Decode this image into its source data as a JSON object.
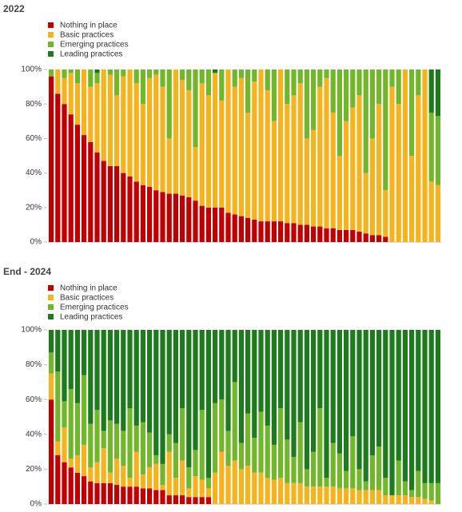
{
  "chart_data": [
    {
      "type": "stacked-bar",
      "title": "2022",
      "ylim": [
        0,
        100
      ],
      "yticks": [
        {
          "value": 0,
          "label": "0%"
        },
        {
          "value": 20,
          "label": "20%"
        },
        {
          "value": 40,
          "label": "40%"
        },
        {
          "value": 60,
          "label": "60%"
        },
        {
          "value": 80,
          "label": "80%"
        },
        {
          "value": 100,
          "label": "100%"
        }
      ],
      "series": [
        {
          "name": "Nothing in place",
          "color": "#c00000",
          "values": [
            96,
            86,
            80,
            74,
            68,
            62,
            58,
            52,
            47,
            44,
            44,
            40,
            38,
            35,
            33,
            32,
            30,
            29,
            28,
            28,
            27,
            26,
            24,
            21,
            20,
            20,
            20,
            17,
            16,
            15,
            14,
            13,
            12,
            12,
            12,
            12,
            11,
            11,
            10,
            10,
            9,
            9,
            8,
            8,
            7,
            7,
            7,
            6,
            5,
            4,
            4,
            3,
            0,
            0,
            0,
            0,
            0,
            0,
            0,
            0
          ]
        },
        {
          "name": "Basic practices",
          "color": "#f5b41e",
          "values": [
            0,
            14,
            15,
            24,
            24,
            38,
            32,
            40,
            53,
            53,
            41,
            56,
            62,
            57,
            47,
            63,
            67,
            61,
            32,
            72,
            67,
            62,
            31,
            71,
            65,
            78,
            62,
            83,
            74,
            80,
            61,
            80,
            88,
            76,
            58,
            88,
            69,
            74,
            82,
            50,
            56,
            81,
            87,
            67,
            43,
            63,
            71,
            79,
            35,
            56,
            76,
            27,
            90,
            80,
            100,
            50,
            85,
            100,
            35,
            33
          ]
        },
        {
          "name": "Emerging practices",
          "color": "#72b62c",
          "values": [
            4,
            0,
            5,
            2,
            8,
            0,
            10,
            6,
            0,
            3,
            15,
            4,
            0,
            8,
            20,
            5,
            3,
            10,
            40,
            0,
            6,
            12,
            45,
            8,
            15,
            0,
            18,
            0,
            10,
            5,
            25,
            7,
            0,
            12,
            30,
            0,
            20,
            15,
            8,
            40,
            35,
            10,
            5,
            25,
            50,
            30,
            22,
            15,
            60,
            40,
            20,
            70,
            10,
            20,
            0,
            50,
            15,
            0,
            40,
            40
          ]
        },
        {
          "name": "Leading practices",
          "color": "#1d7a1d",
          "values": [
            0,
            0,
            0,
            0,
            0,
            0,
            0,
            2,
            0,
            0,
            0,
            0,
            0,
            0,
            0,
            0,
            0,
            0,
            0,
            0,
            0,
            0,
            0,
            0,
            0,
            2,
            0,
            0,
            0,
            0,
            0,
            0,
            0,
            0,
            0,
            0,
            0,
            0,
            0,
            0,
            0,
            0,
            0,
            0,
            0,
            0,
            0,
            0,
            0,
            0,
            0,
            0,
            0,
            0,
            0,
            0,
            0,
            0,
            25,
            27
          ]
        }
      ]
    },
    {
      "type": "stacked-bar",
      "title": "End - 2024",
      "ylim": [
        0,
        100
      ],
      "yticks": [
        {
          "value": 0,
          "label": "0%"
        },
        {
          "value": 20,
          "label": "20%"
        },
        {
          "value": 40,
          "label": "40%"
        },
        {
          "value": 60,
          "label": "60%"
        },
        {
          "value": 80,
          "label": "80%"
        },
        {
          "value": 100,
          "label": "100%"
        }
      ],
      "series": [
        {
          "name": "Nothing in place",
          "color": "#c00000",
          "values": [
            60,
            28,
            24,
            21,
            18,
            16,
            13,
            12,
            12,
            12,
            11,
            10,
            10,
            10,
            9,
            9,
            8,
            8,
            5,
            5,
            5,
            4,
            4,
            4,
            4,
            0,
            0,
            0,
            0,
            0,
            0,
            0,
            0,
            0,
            0,
            0,
            0,
            0,
            0,
            0,
            0,
            0,
            0,
            0,
            0,
            0,
            0,
            0,
            0,
            0,
            0,
            0,
            0,
            0,
            0,
            0,
            0,
            0,
            0,
            0
          ]
        },
        {
          "name": "Basic practices",
          "color": "#f5b41e",
          "values": [
            15,
            8,
            20,
            5,
            10,
            18,
            8,
            12,
            20,
            6,
            15,
            12,
            5,
            20,
            8,
            12,
            15,
            3,
            25,
            10,
            20,
            5,
            12,
            10,
            5,
            18,
            30,
            22,
            25,
            20,
            22,
            18,
            18,
            15,
            14,
            15,
            12,
            12,
            12,
            10,
            10,
            10,
            10,
            10,
            9,
            9,
            9,
            8,
            8,
            8,
            8,
            5,
            5,
            5,
            5,
            4,
            4,
            3,
            2,
            0
          ]
        },
        {
          "name": "Emerging practices",
          "color": "#72b62c",
          "values": [
            12,
            40,
            15,
            40,
            30,
            40,
            25,
            30,
            10,
            30,
            20,
            20,
            40,
            15,
            30,
            20,
            5,
            12,
            10,
            20,
            30,
            12,
            15,
            40,
            6,
            40,
            30,
            20,
            45,
            15,
            30,
            20,
            35,
            30,
            20,
            40,
            25,
            15,
            35,
            10,
            20,
            45,
            5,
            25,
            20,
            10,
            30,
            12,
            5,
            20,
            25,
            10,
            0,
            20,
            8,
            4,
            15,
            9,
            10,
            12
          ]
        },
        {
          "name": "Leading practices",
          "color": "#1d7a1d",
          "values": [
            13,
            24,
            41,
            34,
            42,
            26,
            54,
            46,
            58,
            52,
            54,
            58,
            45,
            55,
            53,
            59,
            72,
            77,
            60,
            65,
            45,
            79,
            69,
            46,
            85,
            42,
            40,
            58,
            30,
            65,
            48,
            62,
            47,
            55,
            66,
            45,
            63,
            73,
            53,
            80,
            70,
            45,
            85,
            65,
            71,
            81,
            61,
            80,
            87,
            72,
            67,
            85,
            95,
            75,
            87,
            92,
            81,
            88,
            88,
            88
          ]
        }
      ]
    }
  ]
}
